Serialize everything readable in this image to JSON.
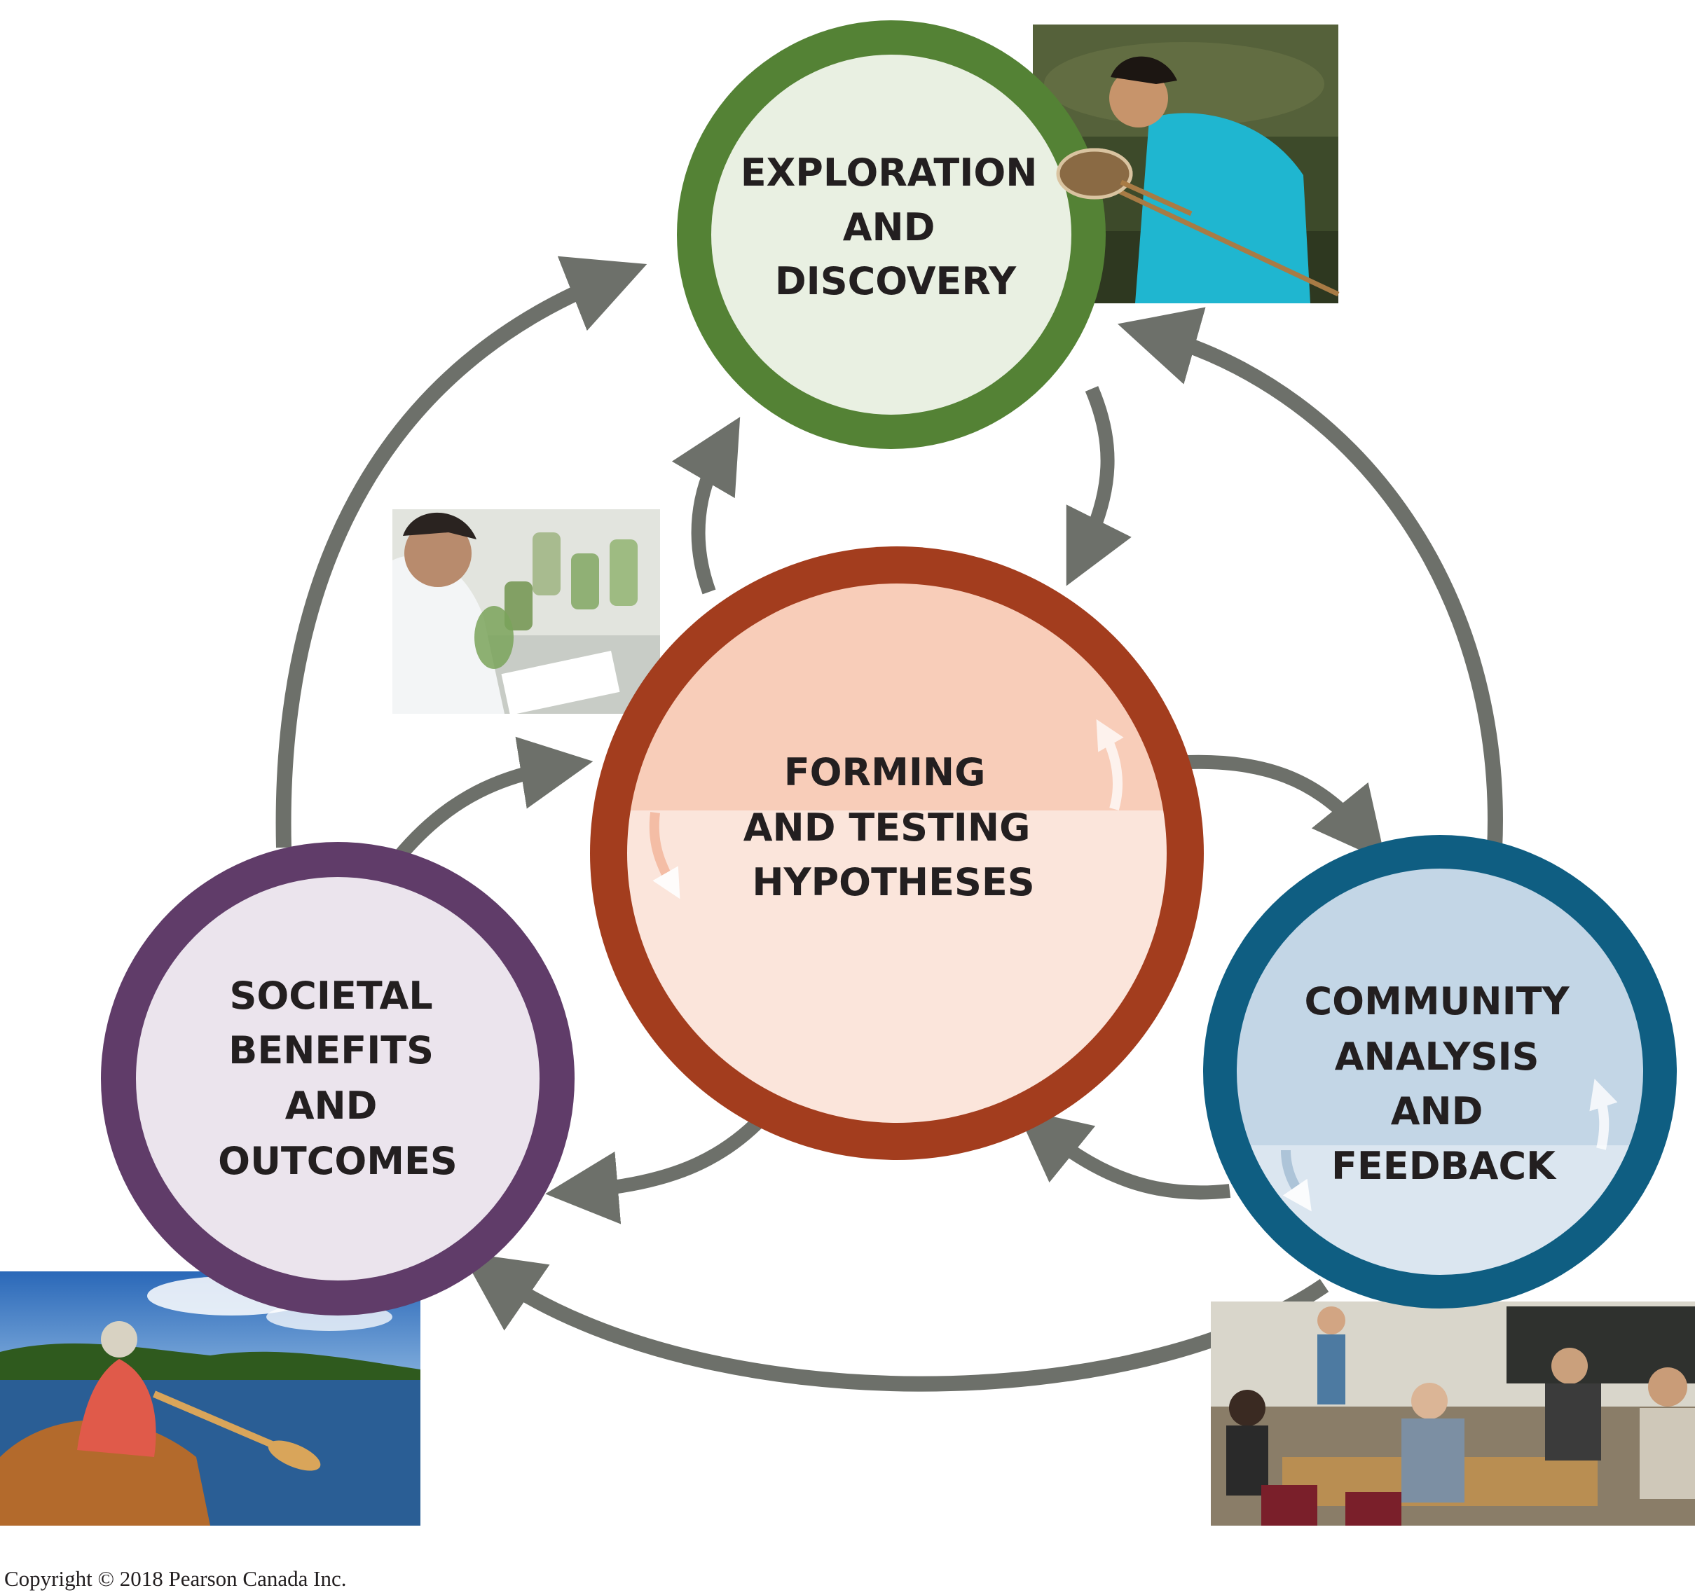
{
  "nodes": {
    "exploration": {
      "lines": [
        "EXPLORATION",
        "AND",
        "DISCOVERY"
      ],
      "ring_color": "#548235",
      "fill_color": "#e9f0e2"
    },
    "hypotheses": {
      "lines": [
        "FORMING",
        "AND TESTING",
        "HYPOTHESES"
      ],
      "ring_color": "#a33d1e",
      "fill_top": "#f8cdb9",
      "fill_bottom": "#fbe5db"
    },
    "community": {
      "lines": [
        "COMMUNITY",
        "ANALYSIS",
        "AND",
        "FEEDBACK"
      ],
      "ring_color": "#0f5e82",
      "fill_top": "#c3d6e6",
      "fill_bottom": "#dbe6f0"
    },
    "societal": {
      "lines": [
        "SOCIETAL",
        "BENEFITS",
        "AND",
        "OUTCOMES"
      ],
      "ring_color": "#603c69",
      "fill_color": "#ebe4ed"
    }
  },
  "arrow_color": "#6d706a",
  "photos": [
    {
      "name": "photo-field-research",
      "subject": "student with a net in a pond"
    },
    {
      "name": "photo-lab-research",
      "subject": "scientist examining plant cultures"
    },
    {
      "name": "photo-canoe",
      "subject": "person paddling a canoe on a river"
    },
    {
      "name": "photo-meeting",
      "subject": "group meeting at a conference table"
    }
  ],
  "copyright": "Copyright © 2018 Pearson Canada Inc."
}
